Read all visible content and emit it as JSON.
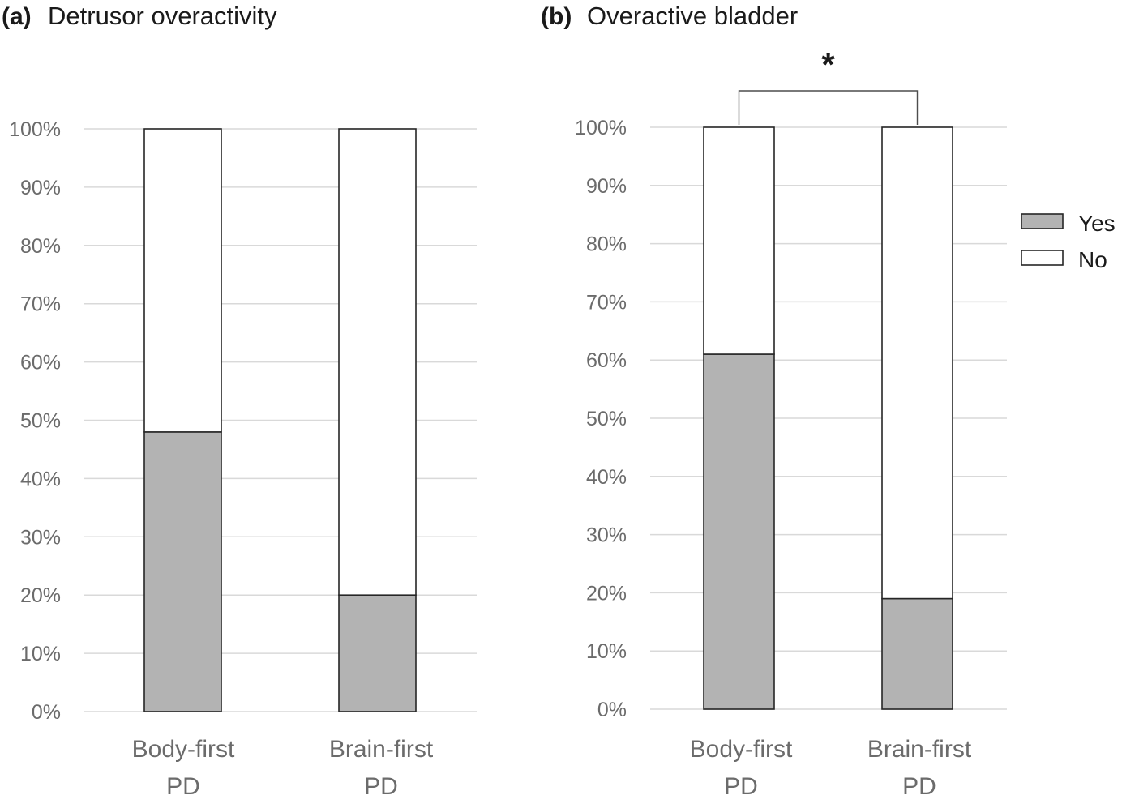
{
  "chart_data": [
    {
      "type": "bar",
      "stacked": true,
      "panel": "(a)",
      "title": "Detrusor overactivity",
      "categories": [
        [
          "Body-first",
          "PD"
        ],
        [
          "Brain-first",
          "PD"
        ]
      ],
      "series": [
        {
          "name": "Yes",
          "values": [
            48,
            20
          ],
          "color": "#b3b3b3"
        },
        {
          "name": "No",
          "values": [
            52,
            80
          ],
          "color": "#ffffff"
        }
      ],
      "yticks": [
        "0%",
        "10%",
        "20%",
        "30%",
        "40%",
        "50%",
        "60%",
        "70%",
        "80%",
        "90%",
        "100%"
      ],
      "ylim": [
        0,
        100
      ],
      "grid": true
    },
    {
      "type": "bar",
      "stacked": true,
      "panel": "(b)",
      "title": "Overactive bladder",
      "categories": [
        [
          "Body-first",
          "PD"
        ],
        [
          "Brain-first",
          "PD"
        ]
      ],
      "series": [
        {
          "name": "Yes",
          "values": [
            61,
            19
          ],
          "color": "#b3b3b3"
        },
        {
          "name": "No",
          "values": [
            39,
            81
          ],
          "color": "#ffffff"
        }
      ],
      "yticks": [
        "0%",
        "10%",
        "20%",
        "30%",
        "40%",
        "50%",
        "60%",
        "70%",
        "80%",
        "90%",
        "100%"
      ],
      "ylim": [
        0,
        100
      ],
      "grid": true,
      "significance": "*"
    }
  ],
  "legend": {
    "placement": "right",
    "items": [
      {
        "label": "Yes",
        "color": "#b3b3b3"
      },
      {
        "label": "No",
        "color": "#ffffff"
      }
    ]
  }
}
